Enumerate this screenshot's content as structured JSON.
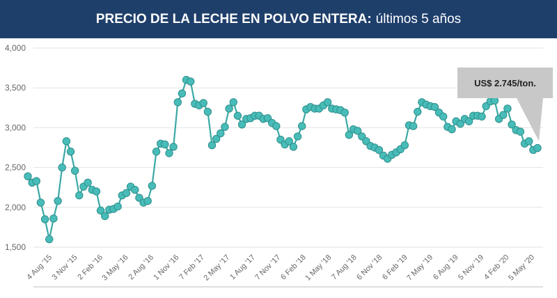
{
  "header": {
    "title_bold": "PRECIO DE LA LECHE EN POLVO ENTERA:",
    "title_rest": "últimos 5 años"
  },
  "chart_data": {
    "type": "line",
    "title": "PRECIO DE LA LECHE EN POLVO ENTERA: últimos 5 años",
    "xlabel": "",
    "ylabel": "",
    "ylim": [
      1500,
      4000
    ],
    "y_ticks": [
      "1,500",
      "2,000",
      "2,500",
      "3,000",
      "3,500",
      "4,000"
    ],
    "x_tick_labels": [
      "4 Aug '15",
      "3 Nov '15",
      "2 Feb '16",
      "3 May '16",
      "2 Aug '16",
      "1 Nov '16",
      "7 Feb '17",
      "2 May '17",
      "1 Aug '17",
      "7 Nov '17",
      "6 Feb '18",
      "1 May '18",
      "7 Aug '18",
      "6 Nov '18",
      "6 Feb '19",
      "7 May '19",
      "6 Aug '19",
      "5 Nov '19",
      "4 Feb '20",
      "5 May '20"
    ],
    "grid": true,
    "line_color": "#3aa8a5",
    "marker_color": "#48bcb8",
    "marker_edge_color": "#2e8f8c",
    "annotation": "US$ 2.745/ton.",
    "series": [
      {
        "values": [
          2390,
          2310,
          2330,
          2060,
          1850,
          1600,
          1860,
          2080,
          2500,
          2830,
          2700,
          2460,
          2150,
          2260,
          2310,
          2220,
          2200,
          1960,
          1890,
          1970,
          1980,
          2010,
          2150,
          2180,
          2260,
          2220,
          2120,
          2060,
          2080,
          2270,
          2700,
          2800,
          2790,
          2680,
          2760,
          3320,
          3430,
          3600,
          3580,
          3300,
          3280,
          3310,
          3200,
          2780,
          2860,
          2930,
          3010,
          3240,
          3320,
          3150,
          3040,
          3110,
          3120,
          3150,
          3150,
          3110,
          3120,
          3060,
          3020,
          2850,
          2790,
          2830,
          2760,
          2890,
          3020,
          3230,
          3260,
          3240,
          3240,
          3280,
          3320,
          3240,
          3230,
          3220,
          3190,
          2910,
          2980,
          2960,
          2890,
          2830,
          2770,
          2750,
          2720,
          2650,
          2610,
          2660,
          2690,
          2730,
          2780,
          3030,
          3020,
          3200,
          3320,
          3290,
          3270,
          3260,
          3190,
          3140,
          3010,
          2980,
          3080,
          3050,
          3110,
          3080,
          3150,
          3150,
          3140,
          3270,
          3330,
          3340,
          3110,
          3160,
          3240,
          3040,
          2970,
          2950,
          2800,
          2830,
          2720,
          2745
        ]
      }
    ]
  }
}
